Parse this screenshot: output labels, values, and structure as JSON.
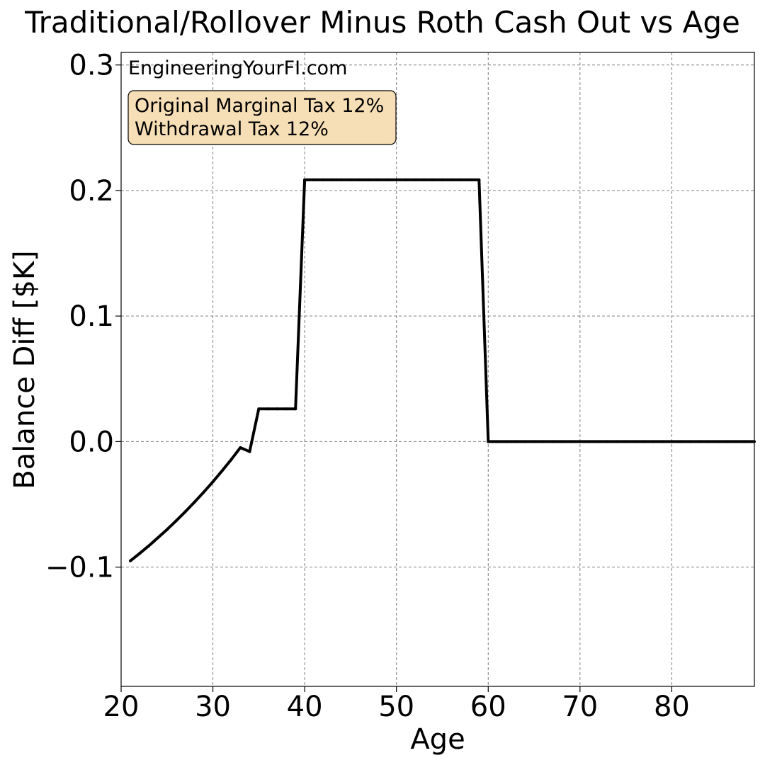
{
  "chart_data": {
    "type": "line",
    "title": "Traditional/Rollover Minus Roth Cash Out vs Age",
    "xlabel": "Age",
    "ylabel": "Balance Diff [$K]",
    "xlim": [
      20,
      89
    ],
    "ylim": [
      -0.195,
      0.31
    ],
    "x_ticks": [
      20,
      30,
      40,
      50,
      60,
      70,
      80
    ],
    "x_tick_labels": [
      "20",
      "30",
      "40",
      "50",
      "60",
      "70",
      "80"
    ],
    "y_ticks": [
      -0.1,
      0.0,
      0.1,
      0.2,
      0.3
    ],
    "y_tick_labels": [
      "−0.1",
      "0.0",
      "0.1",
      "0.2",
      "0.3"
    ],
    "grid": true,
    "watermark": "EngineeringYourFI.com",
    "annotation_lines": [
      "Original Marginal Tax 12%",
      "Withdrawal Tax 12%"
    ],
    "annotation_color": "#f6dfb6",
    "line_color": "#000000",
    "series": [
      {
        "x": [
          21,
          22,
          23,
          24,
          25,
          26,
          27,
          28,
          29,
          30,
          31,
          32,
          33,
          34,
          35,
          36,
          37,
          38,
          39,
          40,
          41,
          42,
          43,
          44,
          45,
          46,
          47,
          48,
          49,
          50,
          51,
          52,
          53,
          54,
          55,
          56,
          57,
          58,
          59,
          60,
          61,
          62,
          63,
          64,
          65,
          66,
          67,
          68,
          69,
          70,
          71,
          72,
          73,
          74,
          75,
          76,
          77,
          78,
          79,
          80,
          81,
          82,
          83,
          84,
          85,
          86,
          87,
          88,
          89
        ],
        "y": [
          -0.095,
          -0.0892,
          -0.0831,
          -0.0767,
          -0.0701,
          -0.0631,
          -0.0558,
          -0.0482,
          -0.0403,
          -0.032,
          -0.0233,
          -0.0143,
          -0.0048,
          -0.008,
          0.026,
          0.026,
          0.026,
          0.026,
          0.026,
          0.2085,
          0.2085,
          0.2085,
          0.2085,
          0.2085,
          0.2085,
          0.2085,
          0.2085,
          0.2085,
          0.2085,
          0.2085,
          0.2085,
          0.2085,
          0.2085,
          0.2085,
          0.2085,
          0.2085,
          0.2085,
          0.2085,
          0.2085,
          0.0,
          0.0,
          0.0,
          0.0,
          0.0,
          0.0,
          0.0,
          0.0,
          0.0,
          0.0,
          0.0,
          0.0,
          0.0,
          0.0,
          0.0,
          0.0,
          0.0,
          0.0,
          0.0,
          0.0,
          0.0,
          0.0,
          0.0,
          0.0,
          0.0,
          0.0,
          0.0,
          0.0,
          0.0,
          0.0
        ]
      }
    ]
  }
}
